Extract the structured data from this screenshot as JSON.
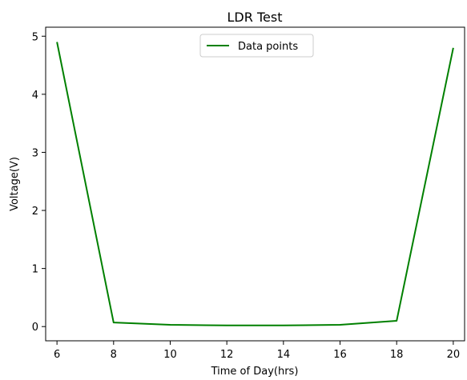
{
  "chart_data": {
    "type": "line",
    "title": "LDR Test",
    "xlabel": "Time of Day(hrs)",
    "ylabel": "Voltage(V)",
    "xlim": [
      5.6,
      20.4
    ],
    "ylim": [
      -0.245,
      5.155
    ],
    "xticks": [
      6,
      8,
      10,
      12,
      14,
      16,
      18,
      20
    ],
    "yticks": [
      0,
      1,
      2,
      3,
      4,
      5
    ],
    "grid": false,
    "legend": "upper center",
    "series": [
      {
        "name": "Data points",
        "color": "#008000",
        "x": [
          6,
          8,
          10,
          12,
          14,
          16,
          18,
          20
        ],
        "y": [
          4.9,
          0.07,
          0.03,
          0.02,
          0.02,
          0.03,
          0.1,
          4.8
        ]
      }
    ]
  }
}
